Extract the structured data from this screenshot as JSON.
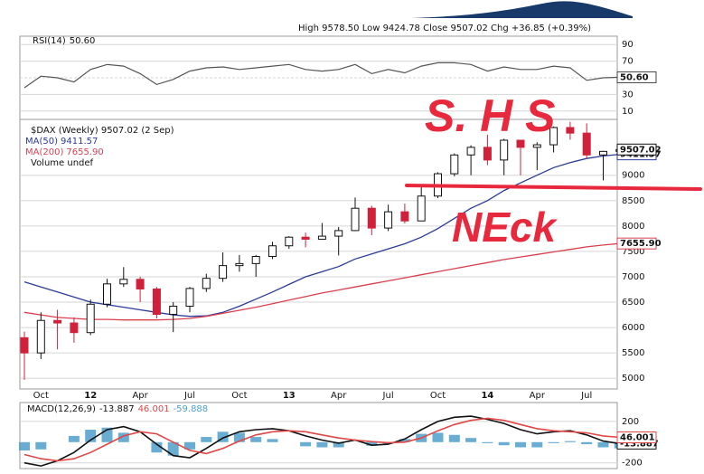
{
  "header": "High 9578.50 Low 9424.78 Close 9507.02 Chg +36.85 (+0.39%)",
  "chart_data": [
    {
      "type": "line",
      "title": "RSI(14)",
      "value_label": "50.60",
      "color": "#555555",
      "ylim": [
        0,
        100
      ],
      "yticks": [
        10,
        30,
        50,
        70,
        90
      ],
      "grid": true,
      "values": [
        38,
        52,
        50,
        45,
        60,
        66,
        64,
        55,
        42,
        48,
        58,
        62,
        63,
        60,
        62,
        64,
        66,
        60,
        58,
        60,
        66,
        55,
        60,
        56,
        64,
        68,
        68,
        66,
        58,
        63,
        60,
        60,
        64,
        62,
        47,
        50,
        50.6
      ]
    },
    {
      "type": "candlestick",
      "title": "$DAX (Weekly) 9507.02 (2 Sep)",
      "legend_extra": "Volume undef",
      "up_color": "#111111",
      "down_color": "#d0203a",
      "categories": [
        null,
        "Oct",
        null,
        null,
        "12",
        null,
        null,
        "Apr",
        null,
        null,
        "Jul",
        null,
        null,
        "Oct",
        null,
        null,
        "13",
        null,
        null,
        "Apr",
        null,
        null,
        "Jul",
        null,
        null,
        "Oct",
        null,
        null,
        "14",
        null,
        null,
        "Apr",
        null,
        null,
        "Jul",
        null,
        null
      ],
      "open": [
        5800,
        5500,
        6140,
        6090,
        5900,
        6460,
        6860,
        6950,
        6760,
        6260,
        6420,
        6770,
        6970,
        7220,
        7260,
        7400,
        7610,
        7780,
        7740,
        7800,
        7910,
        8350,
        7960,
        8280,
        8100,
        8590,
        9030,
        9400,
        9550,
        9300,
        9690,
        9550,
        9600,
        9940,
        9830,
        9400,
        9470.17
      ],
      "high": [
        5920,
        6300,
        6350,
        6200,
        6550,
        6960,
        7190,
        7000,
        6800,
        6500,
        6800,
        7060,
        7480,
        7430,
        7430,
        7690,
        7800,
        7870,
        8060,
        7980,
        8560,
        8400,
        8420,
        8440,
        8770,
        9060,
        9430,
        9590,
        9800,
        9720,
        9700,
        9650,
        9960,
        10050,
        10020,
        9480,
        9578.5
      ],
      "low": [
        4970,
        5380,
        5570,
        5700,
        5850,
        6400,
        6800,
        6500,
        6180,
        5910,
        6300,
        6700,
        6900,
        7100,
        7000,
        7350,
        7550,
        7580,
        7750,
        7420,
        7900,
        7820,
        7900,
        8050,
        8100,
        8550,
        8980,
        9000,
        9200,
        9000,
        9000,
        9100,
        9450,
        9700,
        9330,
        8900,
        9424.78
      ],
      "close": [
        5500,
        6140,
        6090,
        5900,
        6460,
        6860,
        6950,
        6760,
        6260,
        6420,
        6770,
        6970,
        7220,
        7260,
        7400,
        7610,
        7780,
        7740,
        7800,
        7910,
        8350,
        7960,
        8280,
        8100,
        8590,
        9030,
        9400,
        9550,
        9300,
        9690,
        9550,
        9600,
        9940,
        9830,
        9400,
        9470,
        9507.02
      ],
      "series": [
        {
          "name": "MA(50)",
          "value_label": "9411.57",
          "color": "#2c3a98",
          "values": [
            6900,
            6800,
            6700,
            6600,
            6500,
            6450,
            6400,
            6350,
            6300,
            6250,
            6220,
            6230,
            6300,
            6420,
            6560,
            6700,
            6850,
            7000,
            7100,
            7200,
            7350,
            7450,
            7550,
            7650,
            7780,
            7950,
            8150,
            8350,
            8500,
            8700,
            8850,
            9000,
            9150,
            9250,
            9330,
            9380,
            9411.57
          ]
        },
        {
          "name": "MA(200)",
          "value_label": "7655.90",
          "color": "#d8404f",
          "values": [
            6300,
            6250,
            6200,
            6180,
            6160,
            6160,
            6150,
            6150,
            6150,
            6160,
            6180,
            6220,
            6280,
            6340,
            6400,
            6470,
            6540,
            6610,
            6680,
            6740,
            6800,
            6860,
            6920,
            6980,
            7040,
            7100,
            7160,
            7220,
            7280,
            7340,
            7390,
            7440,
            7490,
            7540,
            7590,
            7625,
            7655.9
          ]
        }
      ],
      "ylim": [
        4790,
        10100
      ],
      "yticks": [
        5000,
        5500,
        6000,
        6500,
        7000,
        7500,
        8000,
        8500,
        9000
      ],
      "grid": true,
      "annotations": [
        "S. H S",
        "NEck"
      ]
    },
    {
      "type": "macd",
      "title": "MACD(12,26,9)",
      "ylim": [
        -255,
        382
      ],
      "yticks": [
        -200,
        200
      ],
      "grid": true,
      "series": [
        {
          "name": "MACD",
          "value_label": "-13.887",
          "color": "#111111",
          "kind": "line",
          "values": [
            -200,
            -230,
            -180,
            -100,
            20,
            120,
            150,
            100,
            -20,
            -130,
            -150,
            -60,
            40,
            100,
            120,
            130,
            110,
            60,
            20,
            -10,
            20,
            -30,
            -20,
            30,
            120,
            200,
            240,
            250,
            220,
            180,
            120,
            80,
            100,
            110,
            70,
            10,
            -13.887
          ]
        },
        {
          "name": "Signal",
          "value_label": "46.001",
          "color": "#e04848",
          "kind": "line",
          "values": [
            -120,
            -160,
            -180,
            -160,
            -100,
            -20,
            60,
            100,
            80,
            0,
            -80,
            -110,
            -60,
            10,
            70,
            100,
            110,
            100,
            70,
            40,
            20,
            5,
            -5,
            0,
            40,
            110,
            170,
            210,
            230,
            210,
            170,
            130,
            110,
            100,
            90,
            60,
            46.001
          ]
        },
        {
          "name": "Histogram",
          "value_label": "-59.888",
          "color": "#4f9fcb",
          "kind": "bar",
          "values": [
            -80,
            -70,
            0,
            60,
            120,
            140,
            90,
            0,
            -100,
            -130,
            -70,
            50,
            100,
            90,
            50,
            30,
            0,
            -40,
            -50,
            -50,
            0,
            -35,
            -15,
            30,
            80,
            90,
            70,
            40,
            -10,
            -30,
            -50,
            -50,
            -10,
            10,
            -20,
            -50,
            -59.888
          ]
        }
      ]
    }
  ]
}
